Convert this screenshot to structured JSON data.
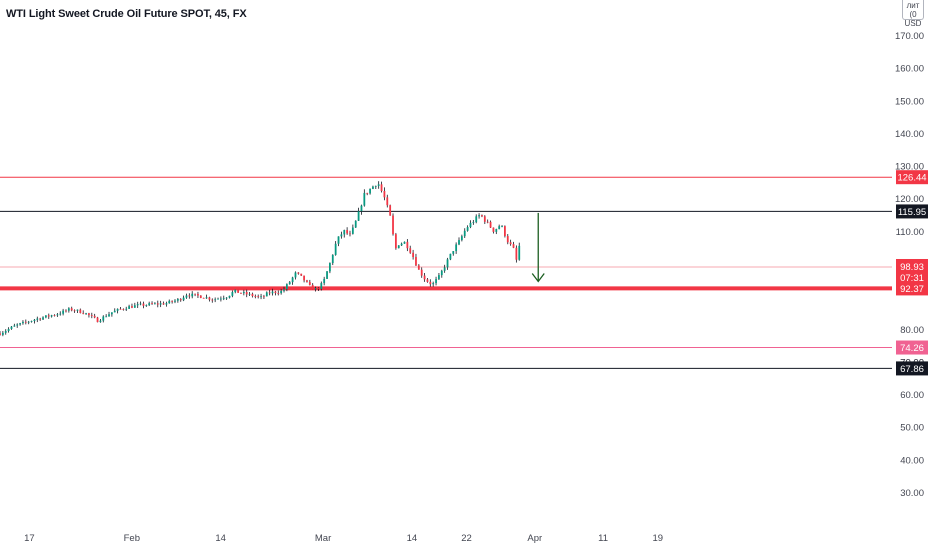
{
  "header": {
    "title": "WTI Light Sweet Crude Oil Future SPOT, 45, FX",
    "currency_top": "лит (0",
    "currency": "USD"
  },
  "chart_data": {
    "type": "candlestick",
    "title": "WTI Light Sweet Crude Oil Future SPOT, 45, FX",
    "ylim": [
      22,
      183
    ],
    "y_ticks": [
      30,
      40,
      50,
      60,
      70,
      80,
      110,
      120,
      130,
      140,
      150,
      160,
      170
    ],
    "y_tick_labels": [
      "30.00",
      "40.00",
      "50.00",
      "60.00",
      "70.00",
      "80.00",
      "110.00",
      "120.00",
      "130.00",
      "140.00",
      "150.00",
      "160.00",
      "170.00"
    ],
    "x_ticks": [
      {
        "label": "17",
        "day": 0
      },
      {
        "label": "Feb",
        "day": 15
      },
      {
        "label": "14",
        "day": 28
      },
      {
        "label": "Mar",
        "day": 43
      },
      {
        "label": "14",
        "day": 56
      },
      {
        "label": "22",
        "day": 64
      },
      {
        "label": "Apr",
        "day": 74
      },
      {
        "label": "11",
        "day": 84
      },
      {
        "label": "19",
        "day": 92
      }
    ],
    "x_range_days": [
      -4.3,
      126
    ],
    "price_path": [
      [
        -4.3,
        78.6
      ],
      [
        -2,
        81
      ],
      [
        1,
        83
      ],
      [
        4,
        84.5
      ],
      [
        6,
        86
      ],
      [
        8,
        85
      ],
      [
        10,
        82.5
      ],
      [
        12,
        85
      ],
      [
        14,
        86.5
      ],
      [
        16,
        87.2
      ],
      [
        18,
        87.5
      ],
      [
        20,
        87.8
      ],
      [
        22,
        89
      ],
      [
        23,
        90.5
      ],
      [
        25,
        90
      ],
      [
        27,
        89
      ],
      [
        29,
        90
      ],
      [
        30,
        91.5
      ],
      [
        32,
        90.5
      ],
      [
        34,
        89.5
      ],
      [
        35,
        91
      ],
      [
        37,
        91.5
      ],
      [
        38,
        94
      ],
      [
        39,
        97
      ],
      [
        40,
        95.5
      ],
      [
        41,
        93
      ],
      [
        42,
        92
      ],
      [
        43,
        94
      ],
      [
        44,
        100
      ],
      [
        45,
        107
      ],
      [
        46,
        110
      ],
      [
        47,
        108.5
      ],
      [
        48,
        114
      ],
      [
        49,
        121
      ],
      [
        50,
        123
      ],
      [
        51,
        125
      ],
      [
        52,
        120
      ],
      [
        53,
        113
      ],
      [
        53.5,
        104
      ],
      [
        54,
        106
      ],
      [
        55,
        106.5
      ],
      [
        56,
        103
      ],
      [
        57,
        98
      ],
      [
        58,
        95
      ],
      [
        59,
        93.5
      ],
      [
        60,
        96
      ],
      [
        61,
        100
      ],
      [
        62,
        104
      ],
      [
        63,
        107
      ],
      [
        64,
        111
      ],
      [
        65,
        113
      ],
      [
        66,
        115
      ],
      [
        67,
        112.5
      ],
      [
        68,
        110
      ],
      [
        69,
        112
      ],
      [
        70,
        107
      ],
      [
        71,
        104
      ],
      [
        71.3,
        101
      ],
      [
        71.6,
        105
      ],
      [
        72,
        106
      ]
    ],
    "hlines": [
      {
        "price": 126.44,
        "color": "#f23645",
        "width": 1,
        "label": "126.44"
      },
      {
        "price": 115.95,
        "color": "#131722",
        "width": 1,
        "label": "115.95"
      },
      {
        "price": 98.93,
        "color": "#f7a9b0",
        "width": 1,
        "label": "98.93",
        "sublabel": "07:31",
        "label_color": "#f23645"
      },
      {
        "price": 92.37,
        "color": "#f23645",
        "width": 4,
        "label": "92.37"
      },
      {
        "price": 74.26,
        "color": "#f06292",
        "width": 1,
        "label": "74.26"
      },
      {
        "price": 67.86,
        "color": "#131722",
        "width": 1,
        "label": "67.86"
      }
    ],
    "extra_partial_tick": "70.00",
    "arrow": {
      "day": 74.5,
      "from_price": 115.5,
      "to_price": 94.5,
      "color": "#1b5e20"
    },
    "colors": {
      "up": "#089981",
      "down": "#f23645",
      "wick": "#131722"
    }
  }
}
